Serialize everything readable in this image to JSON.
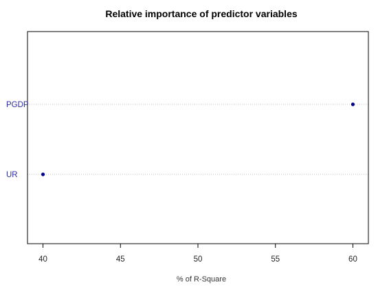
{
  "chart_data": {
    "type": "scatter",
    "title": "Relative importance of predictor variables",
    "xlabel": "% of R-Square",
    "ylabel": "",
    "categories": [
      "PGDP",
      "UR"
    ],
    "values": [
      60,
      40
    ],
    "x_ticks": [
      40,
      45,
      50,
      55,
      60
    ],
    "xlim": [
      39,
      61
    ],
    "grid": "horizontal dotted lines at each category",
    "legend": "none",
    "colors": {
      "point": "#00008b",
      "category_label": "#2b2b9b",
      "grid": "#c0c0c0",
      "frame": "#000000"
    }
  }
}
